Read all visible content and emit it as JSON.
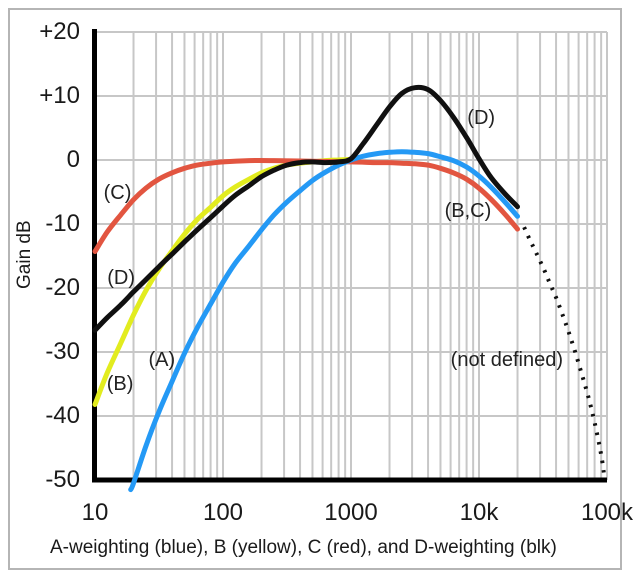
{
  "caption": "A-weighting (blue), B (yellow), C (red), and D-weighting (blk)",
  "chart_data": {
    "type": "line",
    "ylabel": "Gain dB",
    "xlabel": "",
    "x_axis": {
      "scale": "log",
      "min": 10,
      "max": 100000,
      "ticks": [
        {
          "f": 10,
          "label": "10"
        },
        {
          "f": 100,
          "label": "100"
        },
        {
          "f": 1000,
          "label": "1000"
        },
        {
          "f": 10000,
          "label": "10k"
        },
        {
          "f": 100000,
          "label": "100k"
        }
      ]
    },
    "y_axis": {
      "min": -50,
      "max": 20,
      "step": 10,
      "ticks": [
        {
          "db": 20,
          "label": "+20"
        },
        {
          "db": 10,
          "label": "+10"
        },
        {
          "db": 0,
          "label": "0"
        },
        {
          "db": -10,
          "label": "-10"
        },
        {
          "db": -20,
          "label": "-20"
        },
        {
          "db": -30,
          "label": "-30"
        },
        {
          "db": -40,
          "label": "-40"
        },
        {
          "db": -50,
          "label": "-50"
        }
      ]
    },
    "grid": {
      "color": "#c7c7c7",
      "on": true
    },
    "axis_color": "#000000",
    "series": [
      {
        "name": "B-weighting",
        "label": "(B)",
        "color": "#e2ec1f",
        "style": "solid",
        "points": [
          [
            10,
            -38.2
          ],
          [
            12.5,
            -33.2
          ],
          [
            16,
            -28.5
          ],
          [
            20,
            -24.2
          ],
          [
            25,
            -20.4
          ],
          [
            31.5,
            -17.1
          ],
          [
            40,
            -14.2
          ],
          [
            50,
            -11.6
          ],
          [
            63,
            -9.3
          ],
          [
            80,
            -7.4
          ],
          [
            100,
            -5.6
          ],
          [
            125,
            -4.2
          ],
          [
            160,
            -3
          ],
          [
            200,
            -2
          ],
          [
            250,
            -1.3
          ],
          [
            315,
            -0.8
          ],
          [
            400,
            -0.5
          ],
          [
            500,
            -0.3
          ],
          [
            630,
            -0.1
          ],
          [
            800,
            0
          ],
          [
            1000,
            0.1
          ],
          [
            1150,
            0.1
          ]
        ]
      },
      {
        "name": "C-weighting",
        "label": "(C)",
        "color": "#e25540",
        "style": "solid",
        "points": [
          [
            10,
            -14.3
          ],
          [
            12.5,
            -11.2
          ],
          [
            16,
            -8.5
          ],
          [
            20,
            -6.2
          ],
          [
            25,
            -4.4
          ],
          [
            31.5,
            -3
          ],
          [
            40,
            -2
          ],
          [
            50,
            -1.3
          ],
          [
            63,
            -0.8
          ],
          [
            80,
            -0.5
          ],
          [
            100,
            -0.3
          ],
          [
            160,
            -0.1
          ],
          [
            250,
            -0.1
          ],
          [
            500,
            -0.2
          ],
          [
            1000,
            -0.3
          ],
          [
            1600,
            -0.4
          ],
          [
            2000,
            -0.4
          ],
          [
            2500,
            -0.5
          ],
          [
            3150,
            -0.6
          ],
          [
            4000,
            -0.8
          ],
          [
            5000,
            -1.3
          ],
          [
            6300,
            -2
          ],
          [
            8000,
            -3
          ],
          [
            10000,
            -4.4
          ],
          [
            12500,
            -6.2
          ],
          [
            16000,
            -8.5
          ],
          [
            20000,
            -10.8
          ]
        ]
      },
      {
        "name": "A-weighting",
        "label": "(A)",
        "color": "#2499f5",
        "style": "solid",
        "points": [
          [
            19,
            -51.5
          ],
          [
            20,
            -50.5
          ],
          [
            25,
            -44.7
          ],
          [
            31.5,
            -39.4
          ],
          [
            40,
            -34.6
          ],
          [
            50,
            -30.2
          ],
          [
            63,
            -26.2
          ],
          [
            80,
            -22.5
          ],
          [
            100,
            -19.1
          ],
          [
            125,
            -16.1
          ],
          [
            160,
            -13.4
          ],
          [
            200,
            -10.9
          ],
          [
            250,
            -8.6
          ],
          [
            315,
            -6.6
          ],
          [
            400,
            -4.8
          ],
          [
            500,
            -3.2
          ],
          [
            630,
            -1.9
          ],
          [
            800,
            -0.8
          ],
          [
            1000,
            0
          ],
          [
            1250,
            0.6
          ],
          [
            1600,
            1
          ],
          [
            2000,
            1.2
          ],
          [
            2500,
            1.3
          ],
          [
            3150,
            1.2
          ],
          [
            4000,
            1
          ],
          [
            5000,
            0.5
          ],
          [
            6300,
            -0.1
          ],
          [
            8000,
            -1.1
          ],
          [
            10000,
            -2.5
          ],
          [
            12500,
            -4.3
          ],
          [
            16000,
            -6.6
          ],
          [
            20000,
            -8.8
          ]
        ]
      },
      {
        "name": "D-weighting",
        "label": "(D)",
        "color": "#101010",
        "style": "solid",
        "points": [
          [
            10,
            -26.6
          ],
          [
            12.5,
            -24.6
          ],
          [
            16,
            -22.6
          ],
          [
            20,
            -20.6
          ],
          [
            25,
            -18.7
          ],
          [
            31.5,
            -16.7
          ],
          [
            40,
            -14.7
          ],
          [
            50,
            -12.8
          ],
          [
            63,
            -10.9
          ],
          [
            80,
            -9
          ],
          [
            100,
            -7.2
          ],
          [
            125,
            -5.5
          ],
          [
            160,
            -4
          ],
          [
            200,
            -2.6
          ],
          [
            250,
            -1.6
          ],
          [
            315,
            -0.8
          ],
          [
            400,
            -0.4
          ],
          [
            500,
            -0.3
          ],
          [
            630,
            -0.4
          ],
          [
            800,
            -0.3
          ],
          [
            1000,
            0.2
          ],
          [
            1250,
            2.6
          ],
          [
            1600,
            5.6
          ],
          [
            2000,
            8.3
          ],
          [
            2500,
            10.4
          ],
          [
            3150,
            11.3
          ],
          [
            4000,
            11
          ],
          [
            5000,
            9.3
          ],
          [
            6300,
            6.7
          ],
          [
            8000,
            3.5
          ],
          [
            10000,
            0.2
          ],
          [
            12500,
            -2.8
          ],
          [
            16000,
            -5.3
          ],
          [
            20000,
            -7.3
          ]
        ]
      },
      {
        "name": "not-defined",
        "label": "(not defined)",
        "color": "#101010",
        "style": "dotted",
        "points": [
          [
            22500,
            -10.5
          ],
          [
            25000,
            -12.5
          ],
          [
            28000,
            -14.5
          ],
          [
            32000,
            -17
          ],
          [
            36000,
            -19.4
          ],
          [
            40000,
            -21.5
          ],
          [
            45000,
            -24.2
          ],
          [
            50000,
            -26.8
          ],
          [
            56000,
            -29.8
          ],
          [
            63000,
            -33.2
          ],
          [
            71000,
            -36.8
          ],
          [
            80000,
            -41
          ],
          [
            90000,
            -46
          ],
          [
            95000,
            -49.2
          ]
        ]
      }
    ],
    "annotations": [
      {
        "text": "(C)",
        "f": 15,
        "db": -5.2
      },
      {
        "text": "(D)",
        "f": 16,
        "db": -18.4
      },
      {
        "text": "(B)",
        "f": 15.7,
        "db": -35
      },
      {
        "text": "(A)",
        "f": 33.3,
        "db": -31.3
      },
      {
        "text": "(D)",
        "f": 10400,
        "db": 6.6
      },
      {
        "text": "(B,C)",
        "f": 8200,
        "db": -8
      },
      {
        "text": "(not defined)",
        "f": 16500,
        "db": -31.3
      }
    ]
  }
}
